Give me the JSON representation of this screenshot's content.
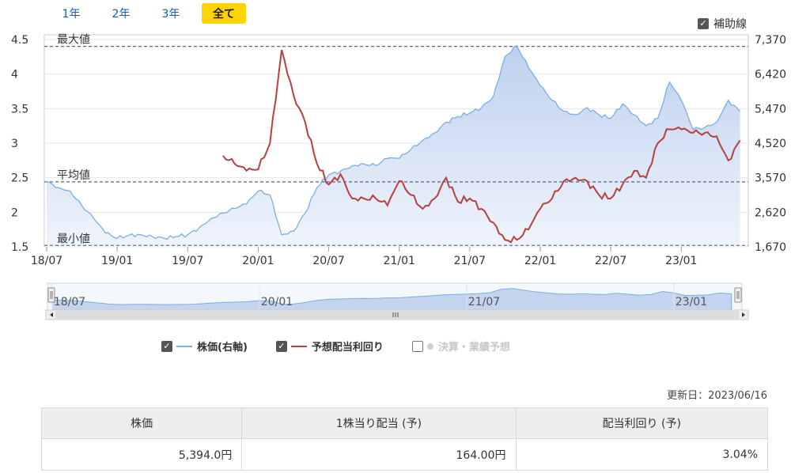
{
  "tabs": [
    {
      "label": "1年",
      "active": false
    },
    {
      "label": "2年",
      "active": false
    },
    {
      "label": "3年",
      "active": false
    },
    {
      "label": "全て",
      "active": true
    }
  ],
  "aux_lines": {
    "label": "補助線",
    "checked": true
  },
  "chart_data": {
    "type": "line",
    "x_tick_labels": [
      "18/07",
      "19/01",
      "19/07",
      "20/01",
      "20/07",
      "21/01",
      "21/07",
      "22/01",
      "22/07",
      "23/01"
    ],
    "left_axis": {
      "ticks": [
        "1.5",
        "2",
        "2.5",
        "3",
        "3.5",
        "4",
        "4.5"
      ],
      "range": [
        1.5,
        4.5
      ]
    },
    "right_axis": {
      "ticks": [
        "1,670",
        "2,620",
        "3,570",
        "4,520",
        "5,470",
        "6,420",
        "7,370"
      ],
      "range": [
        1670,
        7370
      ]
    },
    "reference_lines": [
      {
        "label": "最大値",
        "value": 4.4
      },
      {
        "label": "平均値",
        "value": 2.44
      },
      {
        "label": "最小値",
        "value": 1.52
      }
    ],
    "series": [
      {
        "name": "株価(右軸)",
        "axis": "right",
        "color": "#7aaee6",
        "fill": "#cfdcf2",
        "points": [
          [
            "2018-07",
            3470
          ],
          [
            "2018-08",
            3300
          ],
          [
            "2018-09",
            3200
          ],
          [
            "2018-10",
            2800
          ],
          [
            "2018-11",
            2450
          ],
          [
            "2018-12",
            2050
          ],
          [
            "2019-01",
            1900
          ],
          [
            "2019-02",
            1990
          ],
          [
            "2019-03",
            2000
          ],
          [
            "2019-04",
            1950
          ],
          [
            "2019-05",
            1900
          ],
          [
            "2019-06",
            1950
          ],
          [
            "2019-07",
            2000
          ],
          [
            "2019-08",
            2200
          ],
          [
            "2019-09",
            2450
          ],
          [
            "2019-10",
            2600
          ],
          [
            "2019-11",
            2720
          ],
          [
            "2019-12",
            2850
          ],
          [
            "2020-01",
            3200
          ],
          [
            "2020-02",
            3100
          ],
          [
            "2020-03",
            2000
          ],
          [
            "2020-04",
            2100
          ],
          [
            "2020-05",
            2600
          ],
          [
            "2020-06",
            3300
          ],
          [
            "2020-07",
            3650
          ],
          [
            "2020-08",
            3750
          ],
          [
            "2020-09",
            3900
          ],
          [
            "2020-10",
            3950
          ],
          [
            "2020-11",
            3900
          ],
          [
            "2020-12",
            4100
          ],
          [
            "2021-01",
            4100
          ],
          [
            "2021-02",
            4350
          ],
          [
            "2021-03",
            4600
          ],
          [
            "2021-04",
            4800
          ],
          [
            "2021-05",
            5100
          ],
          [
            "2021-06",
            5250
          ],
          [
            "2021-07",
            5350
          ],
          [
            "2021-08",
            5500
          ],
          [
            "2021-09",
            5800
          ],
          [
            "2021-10",
            6900
          ],
          [
            "2021-11",
            7200
          ],
          [
            "2021-12",
            6600
          ],
          [
            "2022-01",
            6100
          ],
          [
            "2022-02",
            5700
          ],
          [
            "2022-03",
            5400
          ],
          [
            "2022-04",
            5300
          ],
          [
            "2022-05",
            5500
          ],
          [
            "2022-06",
            5300
          ],
          [
            "2022-07",
            5200
          ],
          [
            "2022-08",
            5600
          ],
          [
            "2022-09",
            5300
          ],
          [
            "2022-10",
            5000
          ],
          [
            "2022-11",
            5200
          ],
          [
            "2022-12",
            6200
          ],
          [
            "2023-01",
            5700
          ],
          [
            "2023-02",
            4900
          ],
          [
            "2023-03",
            4950
          ],
          [
            "2023-04",
            5100
          ],
          [
            "2023-05",
            5700
          ],
          [
            "2023-06",
            5394
          ]
        ]
      },
      {
        "name": "予想配当利回り",
        "axis": "left",
        "color": "#b84040",
        "points": [
          [
            "2019-10",
            2.82
          ],
          [
            "2019-11",
            2.7
          ],
          [
            "2019-12",
            2.6
          ],
          [
            "2020-01",
            2.62
          ],
          [
            "2020-02",
            3.0
          ],
          [
            "2020-03",
            4.35
          ],
          [
            "2020-04",
            3.7
          ],
          [
            "2020-05",
            3.3
          ],
          [
            "2020-06",
            2.7
          ],
          [
            "2020-07",
            2.4
          ],
          [
            "2020-08",
            2.55
          ],
          [
            "2020-09",
            2.2
          ],
          [
            "2020-10",
            2.2
          ],
          [
            "2020-11",
            2.2
          ],
          [
            "2020-12",
            2.1
          ],
          [
            "2021-01",
            2.45
          ],
          [
            "2021-02",
            2.25
          ],
          [
            "2021-03",
            2.05
          ],
          [
            "2021-04",
            2.2
          ],
          [
            "2021-05",
            2.5
          ],
          [
            "2021-06",
            2.15
          ],
          [
            "2021-07",
            2.2
          ],
          [
            "2021-08",
            2.05
          ],
          [
            "2021-09",
            1.85
          ],
          [
            "2021-10",
            1.6
          ],
          [
            "2021-11",
            1.6
          ],
          [
            "2021-12",
            1.75
          ],
          [
            "2022-01",
            2.05
          ],
          [
            "2022-02",
            2.2
          ],
          [
            "2022-03",
            2.45
          ],
          [
            "2022-04",
            2.5
          ],
          [
            "2022-05",
            2.45
          ],
          [
            "2022-06",
            2.25
          ],
          [
            "2022-07",
            2.2
          ],
          [
            "2022-08",
            2.4
          ],
          [
            "2022-09",
            2.6
          ],
          [
            "2022-10",
            2.5
          ],
          [
            "2022-11",
            3.0
          ],
          [
            "2022-12",
            3.2
          ],
          [
            "2023-01",
            3.2
          ],
          [
            "2023-02",
            3.15
          ],
          [
            "2023-03",
            3.15
          ],
          [
            "2023-04",
            3.1
          ],
          [
            "2023-05",
            2.75
          ],
          [
            "2023-06",
            3.04
          ]
        ]
      }
    ],
    "navigator_labels": [
      "18/07",
      "20/01",
      "21/07",
      "23/01"
    ],
    "grid": true
  },
  "legend": [
    {
      "label": "株価(右軸)",
      "checked": true,
      "color": "#7aaee6",
      "disabled": false
    },
    {
      "label": "予想配当利回り",
      "checked": true,
      "color": "#b84040",
      "disabled": false
    },
    {
      "label": "決算・業績予想",
      "checked": false,
      "color": "#d0d0d0",
      "disabled": true
    }
  ],
  "updated": "更新日：2023/06/16",
  "summary": {
    "headers": [
      "株価",
      "1株当り配当 (予)",
      "配当利回り (予)"
    ],
    "values": [
      "5,394.0円",
      "164.00円",
      "3.04%"
    ]
  }
}
